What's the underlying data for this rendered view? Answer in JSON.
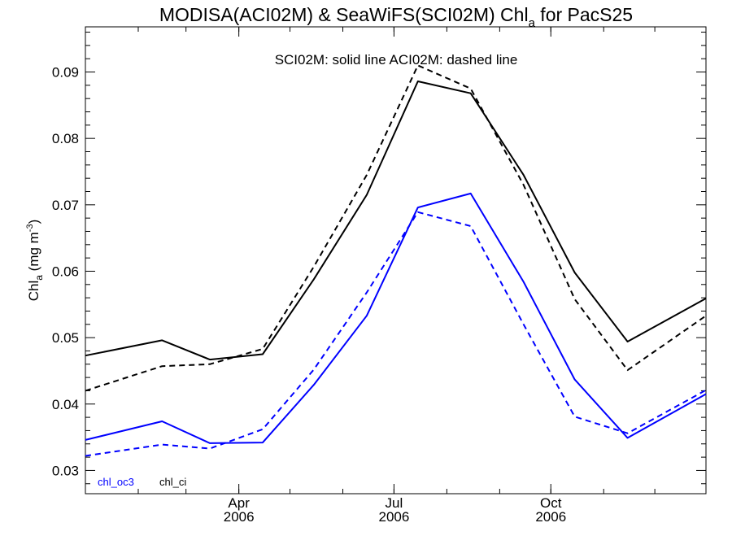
{
  "chart_data": {
    "type": "line",
    "title": "MODISA(ACI02M) & SeaWiFS(SCI02M)  Chl",
    "title_subscript": "a",
    "title_suffix": " for PacS25",
    "annotation": "SCI02M: solid line   ACI02M: dashed line",
    "ylabel": "Chl",
    "ylabel_subscript": "a",
    "ylabel_units": " (mg m",
    "ylabel_units_superscript": "-3",
    "ylabel_units_close": ")",
    "ylim": [
      0.0265,
      0.0968
    ],
    "yticks": [
      0.03,
      0.04,
      0.05,
      0.06,
      0.07,
      0.08,
      0.09
    ],
    "ytick_labels": [
      "0.03",
      "0.04",
      "0.05",
      "0.06",
      "0.07",
      "0.08",
      "0.09"
    ],
    "xlim": [
      "2006-01-01",
      "2006-12-31"
    ],
    "x": [
      "2006-01-01",
      "2006-02-15",
      "2006-03-15",
      "2006-04-15",
      "2006-05-15",
      "2006-06-15",
      "2006-07-15",
      "2006-08-15",
      "2006-09-15",
      "2006-10-15",
      "2006-11-15",
      "2006-12-31"
    ],
    "xtick_minor": [
      "2006-02-01",
      "2006-03-01",
      "2006-04-01",
      "2006-05-01",
      "2006-06-01",
      "2006-07-01",
      "2006-08-01",
      "2006-09-01",
      "2006-10-01",
      "2006-11-01",
      "2006-12-01"
    ],
    "xtick_major": [
      {
        "date": "2006-04-01",
        "month": "Apr",
        "year": "2006"
      },
      {
        "date": "2006-07-01",
        "month": "Jul",
        "year": "2006"
      },
      {
        "date": "2006-10-01",
        "month": "Oct",
        "year": "2006"
      }
    ],
    "series": [
      {
        "name": "chl_ci",
        "style": "solid",
        "color": "#000000",
        "values": [
          0.0473,
          0.0496,
          0.0467,
          0.0475,
          0.0588,
          0.0715,
          0.0886,
          0.0868,
          0.0745,
          0.0598,
          0.0494,
          0.0559
        ]
      },
      {
        "name": "chl_ci",
        "style": "dashed",
        "color": "#000000",
        "values": [
          0.042,
          0.0457,
          0.046,
          0.0483,
          0.0607,
          0.0745,
          0.091,
          0.0875,
          0.073,
          0.0558,
          0.0451,
          0.0533
        ]
      },
      {
        "name": "chl_oc3",
        "style": "solid",
        "color": "#0000ff",
        "values": [
          0.0346,
          0.0374,
          0.0341,
          0.0342,
          0.0429,
          0.0533,
          0.0696,
          0.0717,
          0.0584,
          0.0437,
          0.0349,
          0.0415
        ]
      },
      {
        "name": "chl_oc3",
        "style": "dashed",
        "color": "#0000ff",
        "values": [
          0.0322,
          0.0339,
          0.0333,
          0.0362,
          0.0452,
          0.0568,
          0.0689,
          0.0668,
          0.052,
          0.0381,
          0.0356,
          0.0421
        ]
      }
    ],
    "legend": [
      {
        "label": "chl_oc3",
        "color": "#0000ff"
      },
      {
        "label": "chl_ci",
        "color": "#000000"
      }
    ],
    "legend_position": "bottom-left",
    "grid": false
  }
}
